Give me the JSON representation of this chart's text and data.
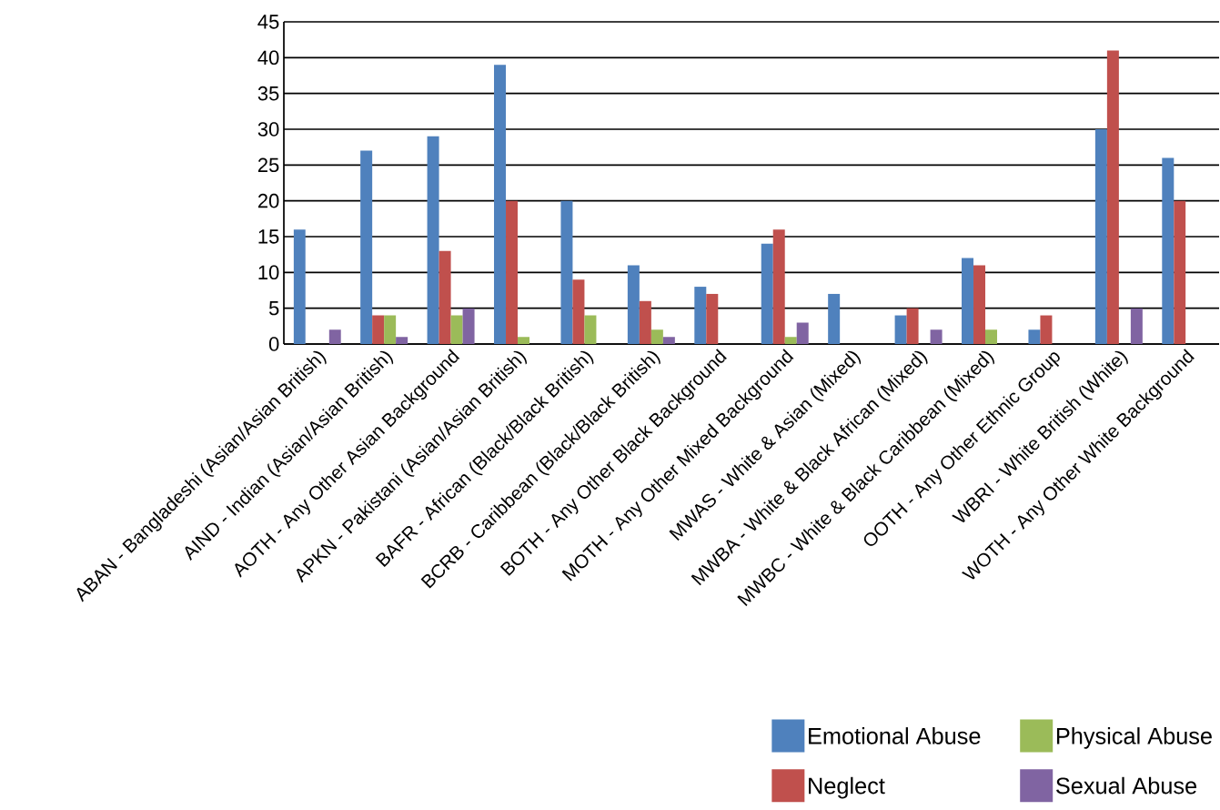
{
  "chart_data": {
    "type": "bar",
    "categories": [
      "ABAN - Bangladeshi (Asian/Asian British)",
      "AIND - Indian (Asian/Asian British)",
      "AOTH - Any Other Asian Background",
      "APKN - Pakistani (Asian/Asian British)",
      "BAFR - African (Black/Black British)",
      "BCRB - Caribbean (Black/Black British)",
      "BOTH - Any Other Black Background",
      "MOTH - Any Other Mixed Background",
      "MWAS - White & Asian (Mixed)",
      "MWBA - White & Black African (Mixed)",
      "MWBC - White & Black Caribbean (Mixed)",
      "OOTH - Any Other Ethnic Group",
      "WBRI - White British (White)",
      "WOTH - Any Other White Background"
    ],
    "series": [
      {
        "name": "Emotional Abuse",
        "color": "#4f81bd",
        "values": [
          16,
          27,
          29,
          39,
          20,
          11,
          8,
          14,
          7,
          4,
          12,
          2,
          30,
          26
        ]
      },
      {
        "name": "Neglect",
        "color": "#c0504d",
        "values": [
          0,
          4,
          13,
          20,
          9,
          6,
          7,
          16,
          0,
          5,
          11,
          4,
          41,
          20
        ]
      },
      {
        "name": "Physical Abuse",
        "color": "#9bbb59",
        "values": [
          0,
          4,
          4,
          1,
          4,
          2,
          0,
          1,
          0,
          0,
          2,
          0,
          0,
          0
        ]
      },
      {
        "name": "Sexual Abuse",
        "color": "#8064a2",
        "values": [
          2,
          1,
          5,
          0,
          0,
          1,
          0,
          3,
          0,
          2,
          0,
          0,
          5,
          0
        ]
      }
    ],
    "ylim": [
      0,
      45
    ],
    "yticks": [
      0,
      5,
      10,
      15,
      20,
      25,
      30,
      35,
      40,
      45
    ],
    "grid": "y",
    "legend": "bottom right"
  }
}
